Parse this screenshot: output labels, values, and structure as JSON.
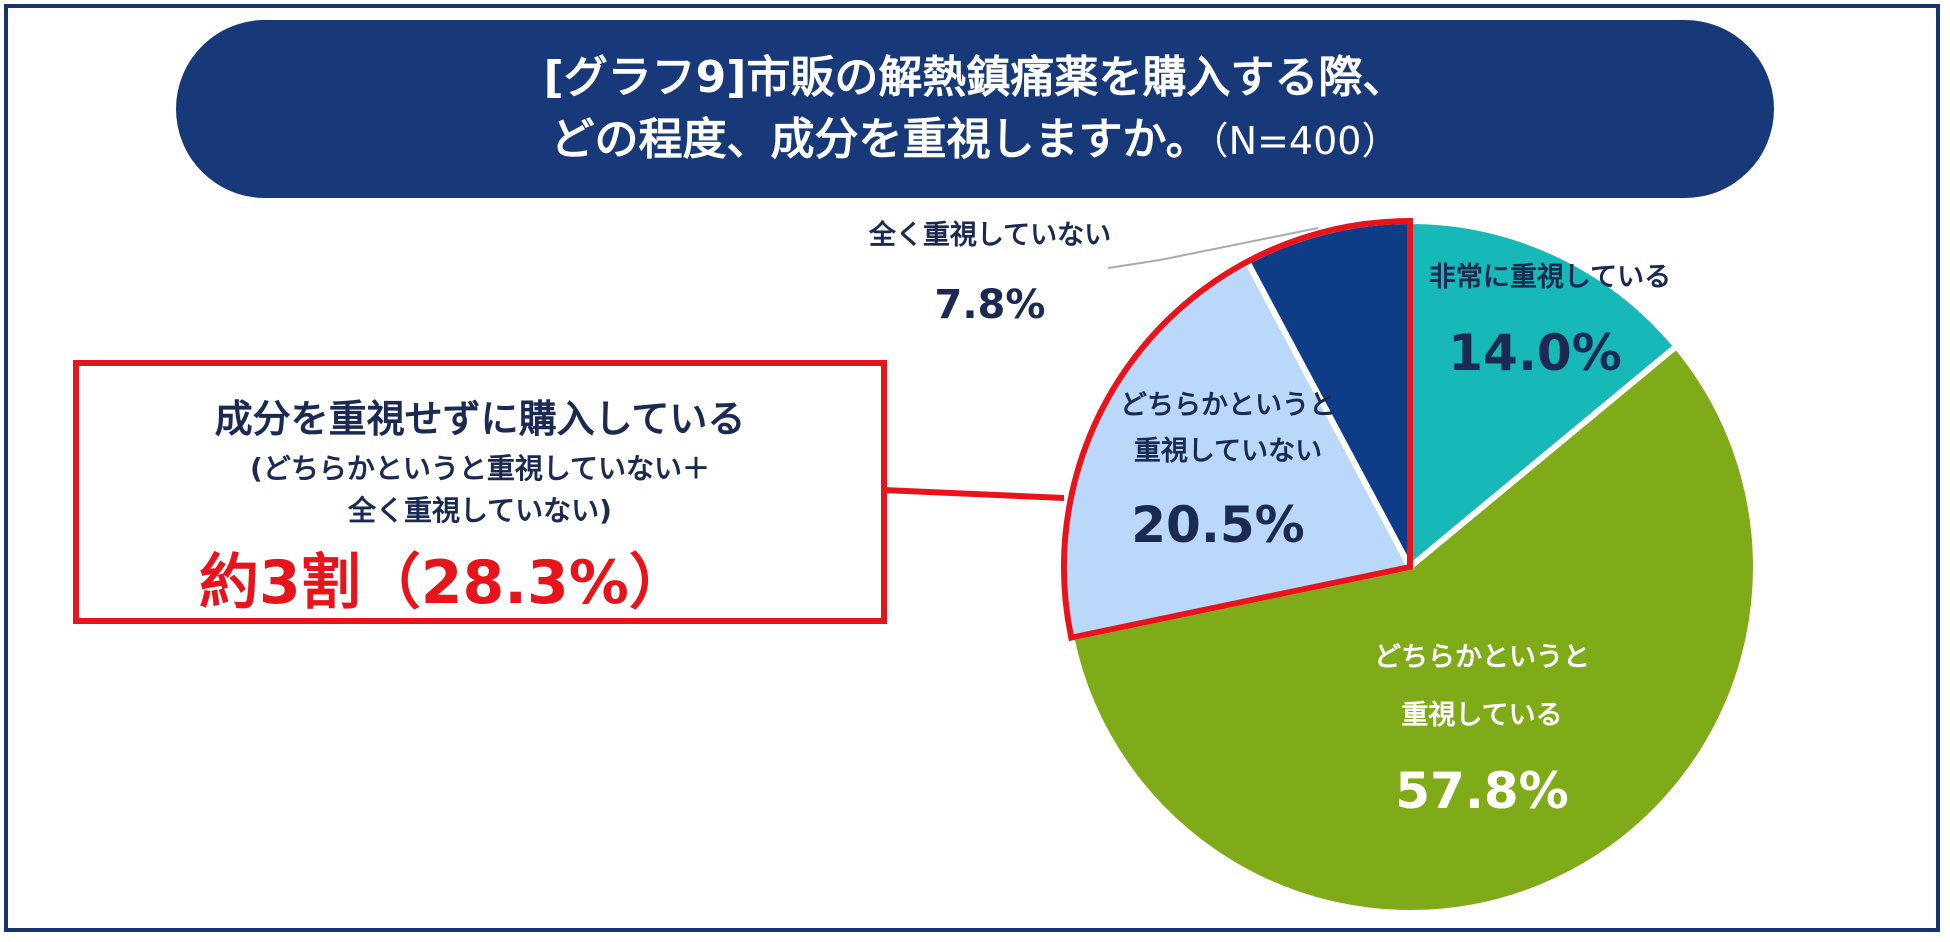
{
  "colors": {
    "banner": "#17397a",
    "frame": "#17346d",
    "highlight": "#e8141c",
    "dark_text": "#1a2a52"
  },
  "chart_data": {
    "type": "pie",
    "title_line1": "[グラフ9]市販の解熱鎮痛薬を購入する際、",
    "title_line2": "どの程度、成分を重視しますか。",
    "sample_size": "（N=400）",
    "unit": "%",
    "slices": [
      {
        "label_line1": "非常に重視している",
        "label_line2": "",
        "value": 14.0,
        "value_label": "14.0%",
        "color": "#16b9b8"
      },
      {
        "label_line1": "どちらかというと",
        "label_line2": "重視している",
        "value": 57.8,
        "value_label": "57.8%",
        "color": "#7fab19"
      },
      {
        "label_line1": "どちらかというと",
        "label_line2": "重視していない",
        "value": 20.5,
        "value_label": "20.5%",
        "color": "#b9d8fa"
      },
      {
        "label_line1": "全く重視していない",
        "label_line2": "",
        "value": 7.8,
        "value_label": "7.8%",
        "color": "#0f3c87"
      }
    ]
  },
  "callout": {
    "heading": "成分を重視せずに購入している",
    "sub_line1": "(どちらかというと重視していない＋",
    "sub_line2": "全く重視していない)",
    "value": "約3割（28.3%）"
  }
}
